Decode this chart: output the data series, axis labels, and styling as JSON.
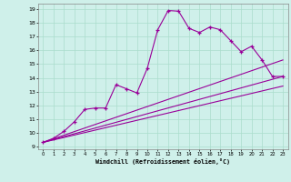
{
  "xlabel": "Windchill (Refroidissement éolien,°C)",
  "bg_color": "#cff0ea",
  "line_color": "#990099",
  "grid_color": "#aaddcc",
  "xlim": [
    -0.5,
    23.5
  ],
  "ylim": [
    8.8,
    19.4
  ],
  "xticks": [
    0,
    1,
    2,
    3,
    4,
    5,
    6,
    7,
    8,
    9,
    10,
    11,
    12,
    13,
    14,
    15,
    16,
    17,
    18,
    19,
    20,
    21,
    22,
    23
  ],
  "yticks": [
    9,
    10,
    11,
    12,
    13,
    14,
    15,
    16,
    17,
    18,
    19
  ],
  "curve1_x": [
    0,
    1,
    2,
    3,
    4,
    5,
    6,
    7,
    8,
    9,
    10,
    11,
    12,
    13,
    14,
    15,
    16,
    17,
    18,
    19,
    20,
    21,
    22,
    23
  ],
  "curve1_y": [
    9.3,
    9.6,
    10.1,
    10.8,
    11.7,
    11.8,
    11.8,
    13.5,
    13.2,
    12.9,
    14.7,
    17.5,
    18.9,
    18.85,
    17.6,
    17.3,
    17.7,
    17.5,
    16.7,
    15.9,
    16.3,
    15.3,
    14.1,
    14.1
  ],
  "line1_x": [
    0,
    23
  ],
  "line1_y": [
    9.3,
    14.1
  ],
  "line2_x": [
    0,
    23
  ],
  "line2_y": [
    9.3,
    13.4
  ],
  "line3_x": [
    0,
    23
  ],
  "line3_y": [
    9.3,
    15.3
  ]
}
